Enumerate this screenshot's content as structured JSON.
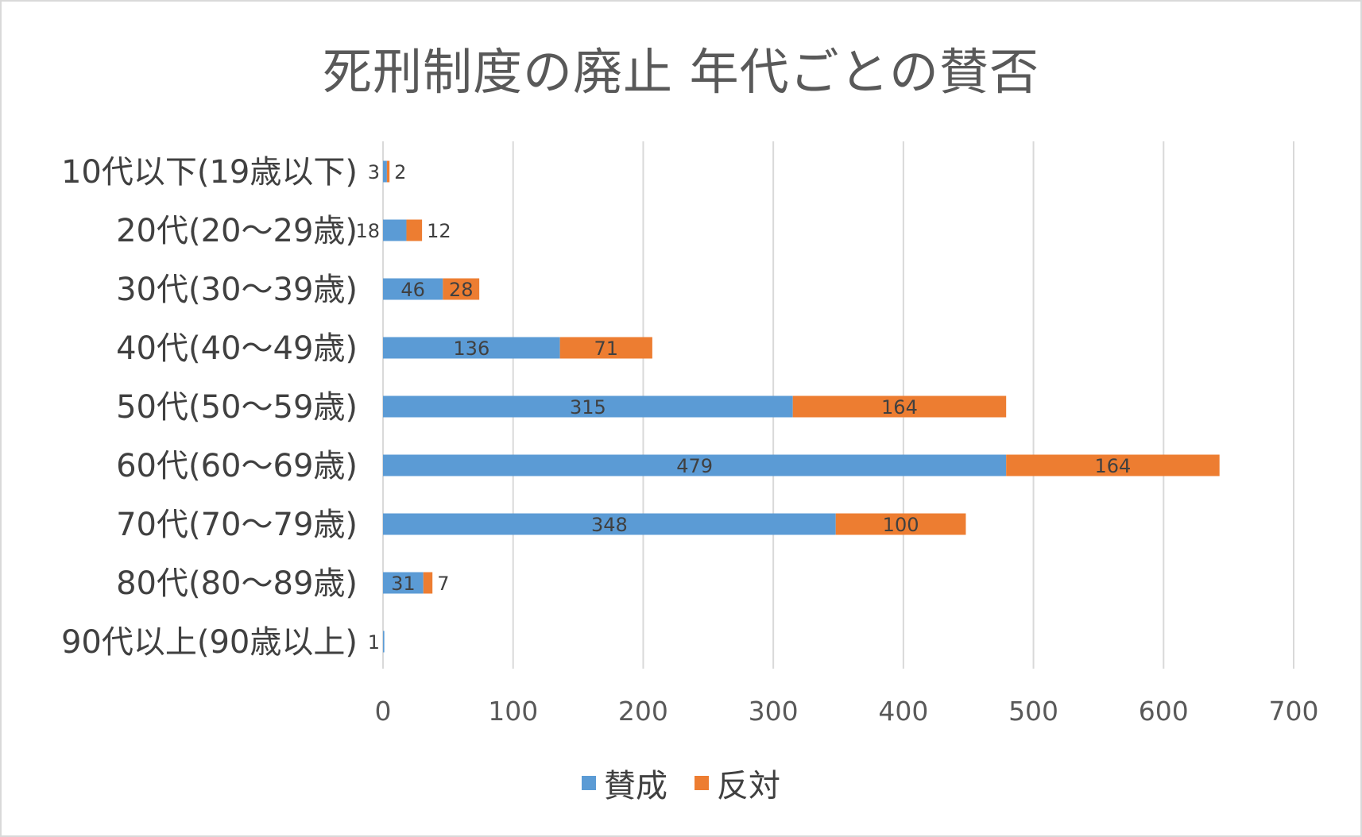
{
  "chart_data": {
    "type": "bar",
    "orientation": "horizontal",
    "stacked": true,
    "title": "死刑制度の廃止 年代ごとの賛否",
    "categories": [
      "10代以下(19歳以下)",
      "20代(20～29歳)",
      "30代(30～39歳)",
      "40代(40～49歳)",
      "50代(50～59歳)",
      "60代(60～69歳)",
      "70代(70～79歳)",
      "80代(80～89歳)",
      "90代以上(90歳以上)"
    ],
    "series": [
      {
        "name": "賛成",
        "color": "#5b9bd5",
        "values": [
          3,
          18,
          46,
          136,
          315,
          479,
          348,
          31,
          1
        ]
      },
      {
        "name": "反対",
        "color": "#ed7d31",
        "values": [
          2,
          12,
          28,
          71,
          164,
          164,
          100,
          7,
          0
        ]
      }
    ],
    "x_ticks": [
      "0",
      "100",
      "200",
      "300",
      "400",
      "500",
      "600",
      "700"
    ],
    "xlim": [
      0,
      700
    ],
    "grid": "vertical",
    "legend_position": "bottom"
  }
}
